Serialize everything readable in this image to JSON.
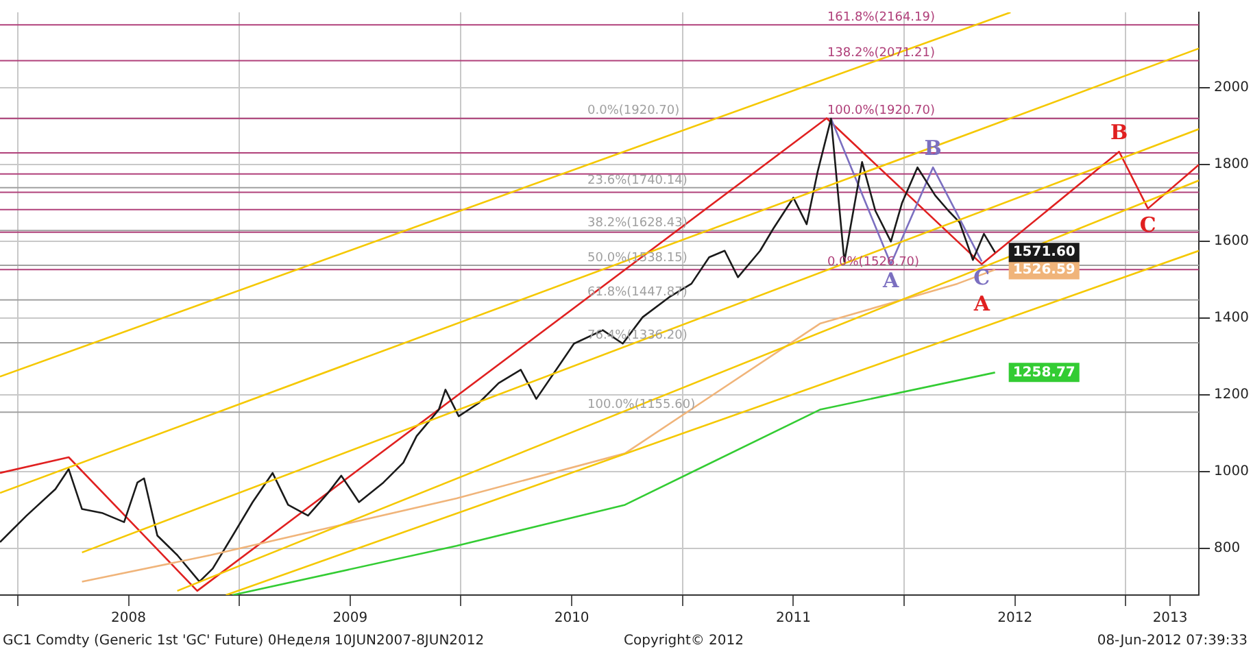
{
  "chart_data": {
    "type": "line",
    "marker": "none",
    "grid": true,
    "legend": false,
    "xlim": [
      2007.92,
      2013.33
    ],
    "xticks": [
      {
        "value": 2008,
        "label": null
      },
      {
        "value": 2008.5,
        "label": "2008"
      },
      {
        "value": 2009,
        "label": null
      },
      {
        "value": 2009.5,
        "label": "2009"
      },
      {
        "value": 2010,
        "label": null
      },
      {
        "value": 2010.5,
        "label": "2010"
      },
      {
        "value": 2011,
        "label": null
      },
      {
        "value": 2011.5,
        "label": "2011"
      },
      {
        "value": 2012,
        "label": null
      },
      {
        "value": 2012.5,
        "label": "2012"
      },
      {
        "value": 2013,
        "label": null
      },
      {
        "value": 2013.2,
        "label": "2013"
      }
    ],
    "ylim": [
      679,
      2197
    ],
    "yticks": [
      800,
      1000,
      1200,
      1400,
      1600,
      1800,
      2000
    ],
    "series": [
      {
        "color": "#f5c800",
        "x": [
          2007.92,
          2012.48
        ],
        "values": [
          1248,
          2197
        ]
      },
      {
        "color": "#f5c800",
        "x": [
          2007.92,
          2013.33
        ],
        "values": [
          945,
          2103
        ]
      },
      {
        "color": "#f5c800",
        "x": [
          2008.29,
          2013.33
        ],
        "values": [
          790,
          1893
        ]
      },
      {
        "color": "#f5c800",
        "x": [
          2008.72,
          2013.33
        ],
        "values": [
          690,
          1759
        ]
      },
      {
        "color": "#f5c800",
        "x": [
          2008.94,
          2013.33
        ],
        "values": [
          679,
          1576
        ]
      },
      {
        "color": "#f0b47a",
        "x": [
          2008.29,
          2008.87,
          2009.98,
          2010.74,
          2011.62,
          2012.24,
          2012.41
        ],
        "values": [
          714,
          783,
          931,
          1048,
          1386,
          1490,
          1526.59
        ],
        "value_labels": [
          null,
          null,
          null,
          null,
          null,
          null,
          "1526.59"
        ]
      },
      {
        "color": "#33cc33",
        "x": [
          2008.97,
          2009.98,
          2010.74,
          2011.62,
          2012.41
        ],
        "values": [
          679,
          807,
          914,
          1162,
          1258.77
        ],
        "value_labels": [
          null,
          null,
          null,
          null,
          "1258.77"
        ]
      },
      {
        "color": "#1a1a1a",
        "x": [
          2007.92,
          2008.04,
          2008.17,
          2008.23,
          2008.29,
          2008.38,
          2008.48,
          2008.54,
          2008.57,
          2008.63,
          2008.72,
          2008.82,
          2008.88,
          2008.97,
          2009.06,
          2009.15,
          2009.22,
          2009.31,
          2009.4,
          2009.46,
          2009.54,
          2009.65,
          2009.74,
          2009.8,
          2009.9,
          2009.93,
          2009.99,
          2010.08,
          2010.17,
          2010.27,
          2010.34,
          2010.45,
          2010.51,
          2010.64,
          2010.73,
          2010.82,
          2010.94,
          2011.04,
          2011.12,
          2011.19,
          2011.25,
          2011.35,
          2011.41,
          2011.5,
          2011.56,
          2011.61,
          2011.67,
          2011.73,
          2011.81,
          2011.87,
          2011.94,
          2011.99,
          2012.06,
          2012.14,
          2012.2,
          2012.25,
          2012.31,
          2012.36,
          2012.41
        ],
        "values": [
          817,
          886,
          955,
          1007,
          903,
          893,
          869,
          972,
          983,
          834,
          783,
          714,
          748,
          834,
          921,
          997,
          914,
          886,
          945,
          990,
          921,
          972,
          1024,
          1093,
          1162,
          1214,
          1145,
          1179,
          1231,
          1266,
          1190,
          1283,
          1334,
          1369,
          1334,
          1403,
          1455,
          1490,
          1559,
          1576,
          1507,
          1576,
          1634,
          1714,
          1645,
          1783,
          1920,
          1548,
          1807,
          1680,
          1600,
          1700,
          1793,
          1720,
          1680,
          1650,
          1552,
          1620,
          1571.6
        ],
        "value_labels": [
          null,
          null,
          null,
          null,
          null,
          null,
          null,
          null,
          null,
          null,
          null,
          null,
          null,
          null,
          null,
          null,
          null,
          null,
          null,
          null,
          null,
          null,
          null,
          null,
          null,
          null,
          null,
          null,
          null,
          null,
          null,
          null,
          null,
          null,
          null,
          null,
          null,
          null,
          null,
          null,
          null,
          null,
          null,
          null,
          null,
          null,
          null,
          null,
          null,
          null,
          null,
          null,
          null,
          null,
          null,
          null,
          null,
          null,
          "1571.60"
        ]
      },
      {
        "color": "#7b6fc0",
        "x": [
          2011.67,
          2011.94,
          2012.13,
          2012.35
        ],
        "values": [
          1920,
          1541,
          1793,
          1548
        ],
        "value_labels": [
          null,
          "A",
          "B",
          "C"
        ]
      },
      {
        "color": "#e02020",
        "x": [
          2007.92,
          2008.23,
          2008.81,
          2011.65,
          2012.35,
          2012.97,
          2013.1,
          2013.33
        ],
        "values": [
          997,
          1038,
          690,
          1921,
          1541,
          1834,
          1686,
          1800
        ],
        "value_labels": [
          null,
          null,
          null,
          null,
          "A",
          "B",
          "C",
          null
        ]
      }
    ],
    "ref_lines": [
      {
        "axis": "y",
        "value": 1920.7,
        "label": "0.0%(1920.70)",
        "color": "#a0a0a0"
      },
      {
        "axis": "y",
        "value": 1740.14,
        "label": "23.6%(1740.14)",
        "color": "#a0a0a0"
      },
      {
        "axis": "y",
        "value": 1628.43,
        "label": "38.2%(1628.43)",
        "color": "#a0a0a0"
      },
      {
        "axis": "y",
        "value": 1538.15,
        "label": "50.0%(1538.15)",
        "color": "#a0a0a0"
      },
      {
        "axis": "y",
        "value": 1447.87,
        "label": "61.8%(1447.87)",
        "color": "#a0a0a0"
      },
      {
        "axis": "y",
        "value": 1336.2,
        "label": "76.4%(1336.20)",
        "color": "#a0a0a0"
      },
      {
        "axis": "y",
        "value": 1155.6,
        "label": "100.0%(1155.60)",
        "color": "#a0a0a0"
      },
      {
        "axis": "y",
        "value": 2164.19,
        "label": "161.8%(2164.19)",
        "color": "#b0407a"
      },
      {
        "axis": "y",
        "value": 2071.21,
        "label": "138.2%(2071.21)",
        "color": "#b0407a"
      },
      {
        "axis": "y",
        "value": 1920.7,
        "label": "100.0%(1920.70)",
        "color": "#b0407a"
      },
      {
        "axis": "y",
        "value": 1831,
        "label": null,
        "color": "#b0407a"
      },
      {
        "axis": "y",
        "value": 1776,
        "label": null,
        "color": "#b0407a"
      },
      {
        "axis": "y",
        "value": 1728,
        "label": null,
        "color": "#b0407a"
      },
      {
        "axis": "y",
        "value": 1683,
        "label": null,
        "color": "#b0407a"
      },
      {
        "axis": "y",
        "value": 1624,
        "label": null,
        "color": "#b0407a"
      },
      {
        "axis": "y",
        "value": 1526.7,
        "label": "0.0%(1526.70)",
        "color": "#b0407a"
      }
    ],
    "annotations": [
      "GC1 Comdty (Generic 1st 'GC' Future) 0Неделя 10JUN2007-8JUN2012",
      "Copyright© 2012",
      "08-Jun-2012 07:39:33"
    ]
  }
}
